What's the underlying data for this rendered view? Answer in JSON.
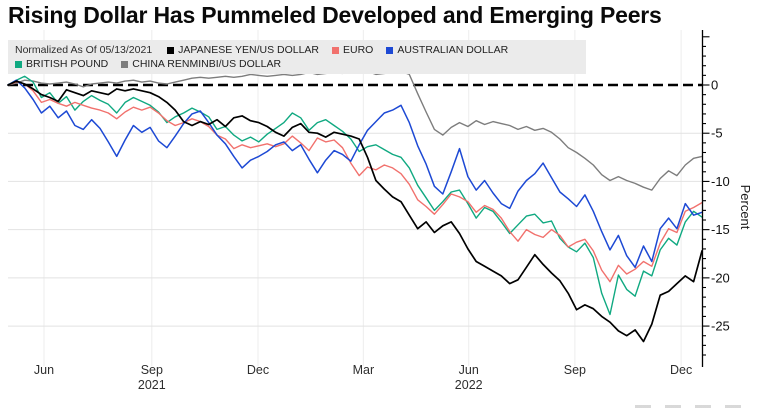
{
  "title": "Rising Dollar Has Pummeled Developed and Emerging Peers",
  "legend": {
    "note": "Normalized As Of 05/13/2021",
    "position": "top-left-overlay",
    "background": "#ebebeb"
  },
  "colors": {
    "jpy": "#000000",
    "eur": "#f1716d",
    "aud": "#1d49d4",
    "gbp": "#10a981",
    "cny": "#7d7d7d",
    "zero_line": "#000000",
    "grid": "#e2e2e2"
  },
  "chart_data": {
    "type": "line",
    "title": "Rising Dollar Has Pummeled Developed and Emerging Peers",
    "xlabel": "",
    "ylabel": "Percent",
    "y_ticks": [
      0,
      -5,
      -10,
      -15,
      -20,
      -25
    ],
    "ylim": [
      -28.5,
      5.7
    ],
    "grid": "horizontal-major, faint vertical quarterly",
    "zero_line": {
      "value": 0,
      "style": "dashed",
      "color": "#000000"
    },
    "x_unit": "weeks since 05/13/2021 (normalization date), through mid-Dec 2022",
    "n_points": 84,
    "x_ticks": [
      {
        "label": "Jun",
        "week": 4.3
      },
      {
        "label": "Sep",
        "week": 17.2,
        "year": "2021"
      },
      {
        "label": "Dec",
        "week": 29.9
      },
      {
        "label": "Mar",
        "week": 42.5
      },
      {
        "label": "Jun",
        "week": 55.1,
        "year": "2022"
      },
      {
        "label": "Sep",
        "week": 67.8
      },
      {
        "label": "Dec",
        "week": 80.5
      }
    ],
    "series": [
      {
        "id": "jpy",
        "name": "JAPANESE YEN/US DOLLAR",
        "color": "#000000",
        "width": 1.7,
        "values": [
          0.0,
          0.4,
          0.1,
          -0.4,
          -1.0,
          -1.3,
          -1.7,
          -0.5,
          -0.8,
          -1.1,
          -0.6,
          -0.8,
          -1.0,
          -0.4,
          -0.6,
          -0.4,
          -0.6,
          -0.8,
          -1.2,
          -1.8,
          -2.6,
          -3.8,
          -4.2,
          -3.8,
          -4.1,
          -3.6,
          -4.3,
          -3.4,
          -3.2,
          -3.7,
          -3.9,
          -4.3,
          -4.9,
          -5.3,
          -4.4,
          -4.0,
          -4.9,
          -5.0,
          -5.4,
          -4.9,
          -5.1,
          -5.3,
          -5.6,
          -7.5,
          -9.9,
          -10.8,
          -11.6,
          -12.1,
          -13.5,
          -14.9,
          -14.2,
          -15.3,
          -14.6,
          -14.2,
          -15.4,
          -17.0,
          -18.3,
          -18.8,
          -19.3,
          -19.8,
          -20.6,
          -20.2,
          -18.9,
          -17.6,
          -18.6,
          -19.5,
          -20.3,
          -21.6,
          -23.3,
          -22.8,
          -23.2,
          -24.0,
          -24.6,
          -25.5,
          -26.0,
          -25.4,
          -26.6,
          -24.8,
          -21.8,
          -21.4,
          -20.6,
          -19.8,
          -20.4,
          -17.2
        ]
      },
      {
        "id": "eur",
        "name": "EURO",
        "color": "#f1716d",
        "width": 1.4,
        "values": [
          0.0,
          0.3,
          0.1,
          -0.6,
          -1.8,
          -1.5,
          -1.9,
          -2.2,
          -1.8,
          -2.1,
          -2.4,
          -2.6,
          -2.9,
          -3.5,
          -2.8,
          -2.3,
          -2.6,
          -2.3,
          -2.9,
          -3.7,
          -4.2,
          -3.9,
          -3.5,
          -3.8,
          -4.3,
          -5.2,
          -5.6,
          -6.6,
          -6.2,
          -6.5,
          -6.3,
          -6.1,
          -6.4,
          -6.1,
          -5.3,
          -6.0,
          -6.8,
          -5.5,
          -5.9,
          -5.7,
          -6.5,
          -8.1,
          -9.4,
          -8.5,
          -8.8,
          -8.3,
          -8.6,
          -9.2,
          -10.3,
          -11.9,
          -12.6,
          -13.4,
          -12.4,
          -11.3,
          -11.6,
          -12.1,
          -13.2,
          -12.5,
          -12.9,
          -13.8,
          -15.2,
          -16.2,
          -15.0,
          -15.5,
          -15.8,
          -15.0,
          -15.6,
          -16.8,
          -16.3,
          -16.0,
          -17.2,
          -19.2,
          -20.4,
          -18.7,
          -19.6,
          -19.1,
          -18.3,
          -18.8,
          -16.4,
          -14.9,
          -15.3,
          -13.1,
          -12.7,
          -12.2
        ]
      },
      {
        "id": "aud",
        "name": "AUSTRALIAN DOLLAR",
        "color": "#1d49d4",
        "width": 1.5,
        "values": [
          0.0,
          0.5,
          -0.3,
          -1.5,
          -2.9,
          -2.2,
          -3.4,
          -2.7,
          -4.2,
          -4.6,
          -3.6,
          -4.5,
          -5.9,
          -7.4,
          -5.7,
          -4.2,
          -4.9,
          -4.4,
          -5.8,
          -6.5,
          -5.3,
          -4.0,
          -3.0,
          -2.7,
          -3.9,
          -5.2,
          -6.1,
          -7.4,
          -8.6,
          -7.8,
          -7.4,
          -6.9,
          -6.2,
          -5.9,
          -6.8,
          -6.2,
          -7.7,
          -9.1,
          -7.8,
          -6.8,
          -7.2,
          -7.9,
          -6.2,
          -4.7,
          -3.8,
          -2.9,
          -2.6,
          -2.1,
          -3.9,
          -6.3,
          -8.2,
          -10.5,
          -11.3,
          -9.0,
          -6.6,
          -9.5,
          -10.9,
          -9.9,
          -11.2,
          -12.3,
          -12.8,
          -11.0,
          -9.9,
          -9.2,
          -8.1,
          -9.6,
          -11.1,
          -11.8,
          -12.6,
          -11.4,
          -13.1,
          -15.2,
          -17.1,
          -15.6,
          -17.7,
          -18.9,
          -16.7,
          -18.3,
          -14.9,
          -13.8,
          -14.9,
          -12.3,
          -13.5,
          -13.2
        ]
      },
      {
        "id": "gbp",
        "name": "BRITISH POUND",
        "color": "#10a981",
        "width": 1.4,
        "values": [
          0.0,
          0.5,
          0.9,
          0.3,
          -1.3,
          -0.8,
          -1.9,
          -1.2,
          -2.6,
          -1.7,
          -1.1,
          -1.6,
          -2.0,
          -2.9,
          -1.8,
          -1.3,
          -1.7,
          -2.1,
          -2.8,
          -3.9,
          -3.3,
          -2.9,
          -2.4,
          -2.8,
          -3.3,
          -4.6,
          -4.3,
          -5.2,
          -5.8,
          -5.4,
          -5.9,
          -5.1,
          -4.5,
          -3.9,
          -2.9,
          -3.4,
          -4.7,
          -3.9,
          -3.6,
          -4.2,
          -4.8,
          -5.6,
          -6.9,
          -6.4,
          -6.2,
          -6.7,
          -7.2,
          -7.5,
          -8.6,
          -10.4,
          -11.7,
          -13.0,
          -12.1,
          -11.1,
          -10.9,
          -12.3,
          -13.8,
          -12.7,
          -13.1,
          -14.2,
          -15.4,
          -14.5,
          -13.6,
          -13.4,
          -14.3,
          -14.1,
          -15.9,
          -16.8,
          -17.3,
          -16.4,
          -17.9,
          -21.6,
          -23.8,
          -19.7,
          -21.2,
          -21.9,
          -19.3,
          -19.8,
          -17.1,
          -15.9,
          -16.6,
          -14.2,
          -13.1,
          -13.7
        ]
      },
      {
        "id": "cny",
        "name": "CHINA RENMINBI/US DOLLAR",
        "color": "#7d7d7d",
        "width": 1.4,
        "values": [
          0.0,
          0.2,
          0.5,
          0.4,
          0.2,
          0.1,
          0.2,
          0.3,
          0.1,
          -0.2,
          0.1,
          0.2,
          0.3,
          0.2,
          0.4,
          0.5,
          0.3,
          0.4,
          0.2,
          0.1,
          0.3,
          0.5,
          0.7,
          0.8,
          0.7,
          0.8,
          0.9,
          0.8,
          0.9,
          1.1,
          1.0,
          0.9,
          1.0,
          1.1,
          1.0,
          1.1,
          1.3,
          1.1,
          1.2,
          1.3,
          1.2,
          1.5,
          1.7,
          1.4,
          1.1,
          1.2,
          1.3,
          1.4,
          1.1,
          -0.9,
          -2.8,
          -4.6,
          -5.2,
          -4.4,
          -3.9,
          -4.3,
          -3.7,
          -4.1,
          -3.8,
          -4.0,
          -4.2,
          -4.6,
          -4.3,
          -4.7,
          -4.5,
          -4.9,
          -5.6,
          -6.5,
          -7.0,
          -7.6,
          -8.3,
          -9.3,
          -9.9,
          -9.5,
          -9.9,
          -10.2,
          -10.6,
          -10.9,
          -9.7,
          -8.9,
          -9.4,
          -8.3,
          -7.6,
          -7.4
        ]
      }
    ],
    "legend_entries": [
      "JAPANESE YEN/US DOLLAR",
      "EURO",
      "AUSTRALIAN DOLLAR",
      "BRITISH POUND",
      "CHINA RENMINBI/US DOLLAR"
    ],
    "legend_note": "Normalized As Of 05/13/2021"
  }
}
